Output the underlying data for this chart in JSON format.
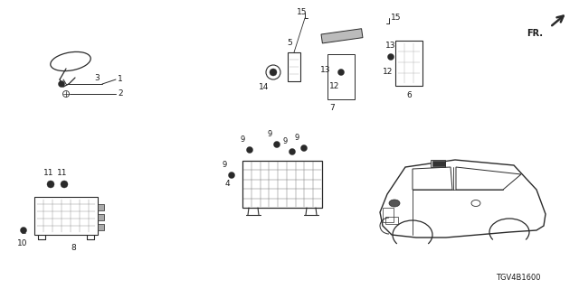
{
  "background_color": "#ffffff",
  "part_number_text": "TGV4B1600",
  "line_color": "#2a2a2a",
  "label_color": "#1a1a1a",
  "font_size": 6.5
}
